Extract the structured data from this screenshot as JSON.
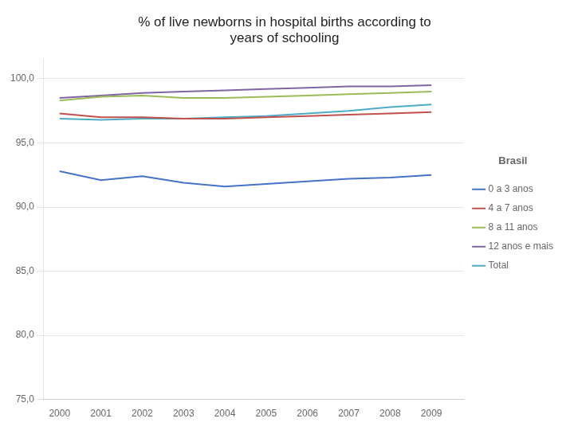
{
  "chart_data": {
    "type": "line",
    "title": "% of live newborns in hospital births according to\nyears of schooling",
    "annotations": [
      "Brasil"
    ],
    "x": [
      2000,
      2001,
      2002,
      2003,
      2004,
      2005,
      2006,
      2007,
      2008,
      2009
    ],
    "series": [
      {
        "name": "0 a 3 anos",
        "color": "#4472C4",
        "values": [
          92.8,
          92.1,
          92.4,
          91.9,
          91.6,
          91.8,
          92.0,
          92.2,
          92.3,
          92.5
        ]
      },
      {
        "name": "4 a 7 anos",
        "color": "#C0504D",
        "values": [
          97.3,
          97.0,
          97.0,
          96.9,
          96.9,
          97.0,
          97.1,
          97.2,
          97.3,
          97.4
        ]
      },
      {
        "name": "8 a 11 anos",
        "color": "#9BBB59",
        "values": [
          98.3,
          98.6,
          98.7,
          98.5,
          98.5,
          98.6,
          98.7,
          98.8,
          98.9,
          99.0
        ]
      },
      {
        "name": "12 anos e mais",
        "color": "#8064A2",
        "values": [
          98.5,
          98.7,
          98.9,
          99.0,
          99.1,
          99.2,
          99.3,
          99.4,
          99.4,
          99.5
        ]
      },
      {
        "name": "Total",
        "color": "#4BACC6",
        "values": [
          96.9,
          96.8,
          96.9,
          96.9,
          97.0,
          97.1,
          97.3,
          97.5,
          97.8,
          98.0
        ]
      }
    ],
    "xlim": [
      1999.6,
      2009.8
    ],
    "xticks": [
      2000,
      2001,
      2002,
      2003,
      2004,
      2005,
      2006,
      2007,
      2008,
      2009
    ],
    "ylim": [
      75.0,
      101.5
    ],
    "yticks": [
      {
        "value": 75.0,
        "label": "75,0"
      },
      {
        "value": 80.0,
        "label": "80,0"
      },
      {
        "value": 85.0,
        "label": "85,0"
      },
      {
        "value": 90.0,
        "label": "90,0"
      },
      {
        "value": 95.0,
        "label": "95,0"
      },
      {
        "value": 100.0,
        "label": "100,0"
      }
    ],
    "grid": "y",
    "legend": "right"
  }
}
